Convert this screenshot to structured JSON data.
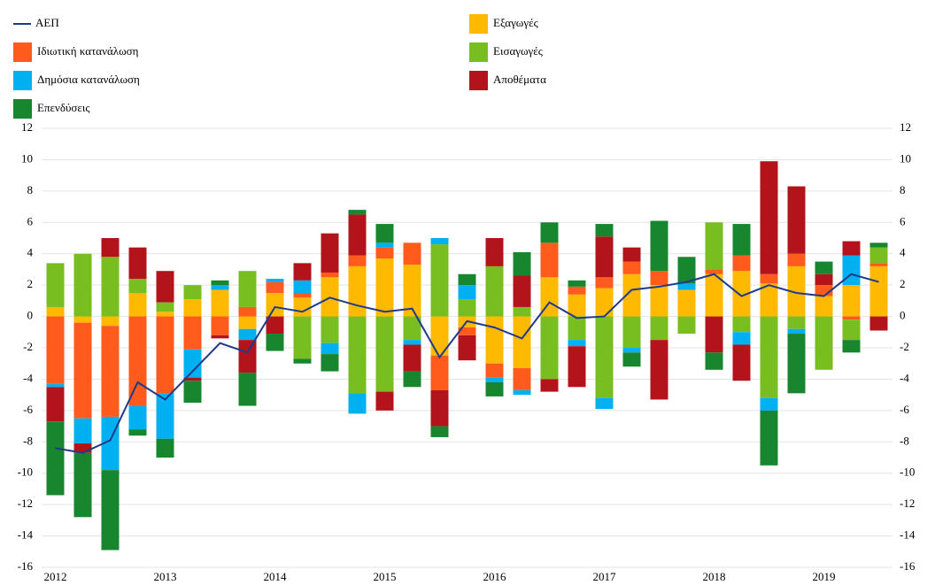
{
  "chart_data": {
    "type": "bar",
    "categories": [
      "2012",
      null,
      null,
      null,
      "2013",
      null,
      null,
      null,
      "2014",
      null,
      null,
      null,
      "2015",
      null,
      null,
      null,
      "2016",
      null,
      null,
      null,
      "2017",
      null,
      null,
      null,
      "2018",
      null,
      null,
      null,
      "2019",
      null,
      null
    ],
    "series": [
      {
        "name": "Ιδιωτική κατανάλωση",
        "color": "#ff5b1c",
        "values": [
          -4.3,
          -6.1,
          -5.8,
          -5.7,
          -4.9,
          -2.1,
          -1.2,
          0.6,
          0.7,
          0.3,
          0.3,
          0.7,
          0.7,
          1.4,
          -2.2,
          -0.5,
          -0.9,
          -1.4,
          2.2,
          0.5,
          0.7,
          0.8,
          0.9,
          0,
          0.3,
          1.0,
          0.6,
          0.8,
          0.7,
          -0.2,
          0.2
        ]
      },
      {
        "name": "Δημόσια κατανάλωση",
        "color": "#00b0f0",
        "values": [
          -0.2,
          -1.6,
          -3.4,
          -1.5,
          -2.9,
          -1.8,
          0.3,
          -0.7,
          0.2,
          0.8,
          -0.7,
          -1.3,
          0.3,
          -0.3,
          0.4,
          0.9,
          -0.3,
          -0.3,
          0,
          -0.4,
          -0.7,
          -0.3,
          0,
          0.4,
          0,
          -0.8,
          -0.8,
          -0.3,
          0,
          1.9,
          0
        ]
      },
      {
        "name": "Επενδύσεις",
        "color": "#17862e",
        "values": [
          -4.7,
          -4.1,
          -5.1,
          -0.4,
          -1.2,
          -1.4,
          0.3,
          -2.1,
          -1.1,
          -0.3,
          -1.1,
          0.3,
          1.2,
          -1.0,
          -0.7,
          0.7,
          -0.9,
          1.5,
          1.3,
          0.4,
          0.8,
          -0.9,
          3.2,
          1.7,
          -1.1,
          2.0,
          -3.5,
          -3.8,
          0.8,
          -0.8,
          0.3
        ]
      },
      {
        "name": "Εξαγωγές",
        "color": "#ffb900",
        "values": [
          0.6,
          -0.4,
          -0.6,
          1.5,
          0.3,
          1.1,
          1.7,
          -0.8,
          1.5,
          1.2,
          2.5,
          3.2,
          3.7,
          3.3,
          -2.5,
          -0.7,
          -3.0,
          -3.3,
          2.5,
          1.4,
          1.8,
          2.7,
          2.0,
          1.7,
          2.7,
          2.9,
          2.1,
          3.2,
          1.3,
          2.0,
          3.2
        ]
      },
      {
        "name": "Εισαγωγές",
        "color": "#78be21",
        "values": [
          2.8,
          4.0,
          3.8,
          0.9,
          0.6,
          0.9,
          0,
          2.3,
          0,
          -2.7,
          -1.7,
          -4.9,
          -4.8,
          -1.5,
          4.6,
          1.1,
          3.2,
          0.6,
          -4.0,
          -1.5,
          -5.2,
          -2.0,
          -1.5,
          -1.1,
          3.0,
          -1.0,
          -5.2,
          -0.8,
          -3.4,
          -1.3,
          1.0
        ]
      },
      {
        "name": "Αποθέματα",
        "color": "#b3141c",
        "values": [
          -2.2,
          -0.6,
          1.2,
          2.0,
          2.0,
          -0.2,
          -0.2,
          -2.1,
          -1.1,
          1.1,
          2.5,
          2.6,
          -1.2,
          -1.7,
          -2.3,
          -1.6,
          1.8,
          2.0,
          -0.8,
          -2.6,
          2.6,
          0.9,
          -3.8,
          0,
          -2.3,
          -2.3,
          7.2,
          4.3,
          0.7,
          0.9,
          -0.9
        ]
      }
    ],
    "line": {
      "name": "ΑΕΠ",
      "color": "#1f3a8a",
      "values": [
        -8.4,
        -8.7,
        -7.9,
        -4.2,
        -5.3,
        -3.5,
        -1.7,
        -2.3,
        0.6,
        0.3,
        1.2,
        0.7,
        0.3,
        0.5,
        -2.6,
        -0.3,
        -0.7,
        -1.4,
        0.9,
        -0.1,
        0.0,
        1.7,
        1.9,
        2.2,
        2.7,
        1.3,
        2.0,
        1.5,
        1.3,
        2.7,
        2.2
      ]
    },
    "ylim": [
      -16,
      12
    ],
    "yticks": [
      -16,
      -14,
      -12,
      -10,
      -8,
      -6,
      -4,
      -2,
      0,
      2,
      4,
      6,
      8,
      10,
      12
    ],
    "grid": true
  }
}
